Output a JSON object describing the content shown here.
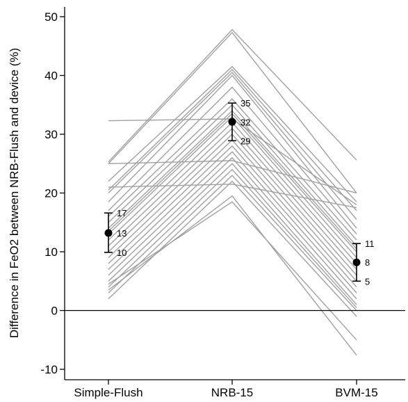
{
  "chart_data": {
    "type": "line",
    "title": "",
    "ylabel": "Difference in FeO2 between NRB-Flush and device (%)",
    "xlabel": "",
    "ylim": [
      -12,
      52
    ],
    "yticks": [
      50,
      40,
      30,
      20,
      10,
      0,
      -10
    ],
    "categories": [
      "Simple-Flush",
      "NRB-15",
      "BVM-15"
    ],
    "reference_line_y": 0,
    "colors": {
      "subject_line": "#a0a0a0",
      "summary": "#000000",
      "axis": "#000000"
    },
    "subject_lines": [
      [
        32.3,
        32.6,
        18.0
      ],
      [
        25.3,
        47.8,
        25.6
      ],
      [
        25.0,
        47.3,
        20.0
      ],
      [
        22.0,
        41.5,
        18.5
      ],
      [
        20.5,
        41.0,
        17.0
      ],
      [
        20.0,
        40.5,
        15.5
      ],
      [
        18.5,
        40.0,
        14.0
      ],
      [
        17.0,
        38.0,
        13.0
      ],
      [
        16.0,
        36.0,
        12.0
      ],
      [
        15.0,
        35.0,
        11.0
      ],
      [
        14.0,
        34.0,
        10.5
      ],
      [
        13.5,
        33.5,
        10.0
      ],
      [
        13.0,
        33.0,
        9.0
      ],
      [
        12.0,
        32.0,
        8.0
      ],
      [
        11.0,
        31.0,
        7.0
      ],
      [
        10.0,
        30.0,
        6.0
      ],
      [
        9.0,
        29.0,
        5.0
      ],
      [
        8.0,
        28.0,
        4.0
      ],
      [
        7.0,
        27.0,
        3.0
      ],
      [
        6.0,
        26.0,
        2.0
      ],
      [
        5.0,
        25.0,
        1.0
      ],
      [
        4.0,
        24.0,
        0.5
      ],
      [
        3.0,
        23.0,
        0.0
      ],
      [
        2.0,
        22.0,
        -1.0
      ],
      [
        25.0,
        25.5,
        20.0
      ],
      [
        21.0,
        21.5,
        17.5
      ],
      [
        4.5,
        18.5,
        -5.0
      ],
      [
        3.5,
        19.5,
        -7.6
      ]
    ],
    "summary": [
      {
        "category": "Simple-Flush",
        "mean": 13.2,
        "lower": 9.9,
        "upper": 16.6,
        "mean_label": "13",
        "lower_label": "10",
        "upper_label": "17"
      },
      {
        "category": "NRB-15",
        "mean": 32.1,
        "lower": 28.9,
        "upper": 35.3,
        "mean_label": "32",
        "lower_label": "29",
        "upper_label": "35"
      },
      {
        "category": "BVM-15",
        "mean": 8.2,
        "lower": 5.0,
        "upper": 11.4,
        "mean_label": "8",
        "lower_label": "5",
        "upper_label": "11"
      }
    ]
  }
}
